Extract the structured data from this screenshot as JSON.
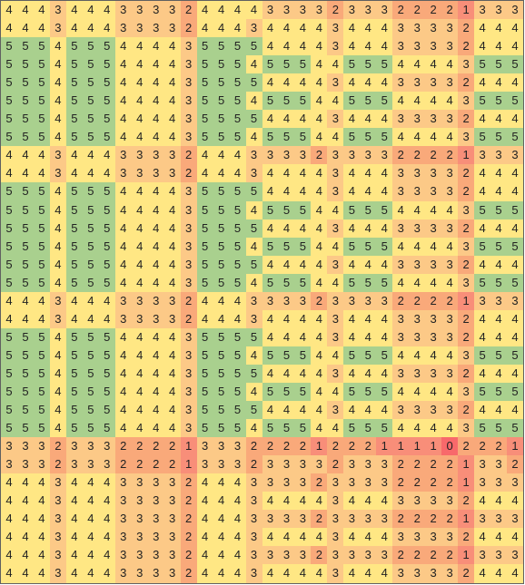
{
  "colors": {
    "0": "#f8696b",
    "1": "#f88e79",
    "2": "#f9a97a",
    "3": "#fcc987",
    "4": "#ffe784",
    "5": "#a9d08e"
  },
  "grid": [
    "44434443333244443333233322221333",
    "44434443333244434444344433332444",
    "55545554444355554444344433332444",
    "55545554444355545554455544443555",
    "55545554444355554444344433332444",
    "55545554444355545554455544443555",
    "55545554444355554444344433332444",
    "55545554444355545554455544443555",
    "44434443333244433332333322221333",
    "44434443333244434444344433332444",
    "55545554444355554444344433332444",
    "55545554444355545554455544443555",
    "55545554444355554444344433332444",
    "55545554444355545554455544443555",
    "55545554444355554444344433332444",
    "55545554444355545554455544443555",
    "44434443333244433332333322221333",
    "44434443333244434444344433332444",
    "55545554444355554444344433332444",
    "55545554444355545554455544443555",
    "55545554444355554444344433332444",
    "55545554444355545554455544443555",
    "55545554444355554444344433332444",
    "55545554444355545554455544443555",
    "33323332222133322221222111102221",
    "33323332222133323333233322221332",
    "44434443333244433332333322221333",
    "44434443333244434444344433332444",
    "44434443333244433332333322221333",
    "44434443333244434444344433332444",
    "44434443333244433332333322221333",
    "44434443333244434444344433332444"
  ]
}
